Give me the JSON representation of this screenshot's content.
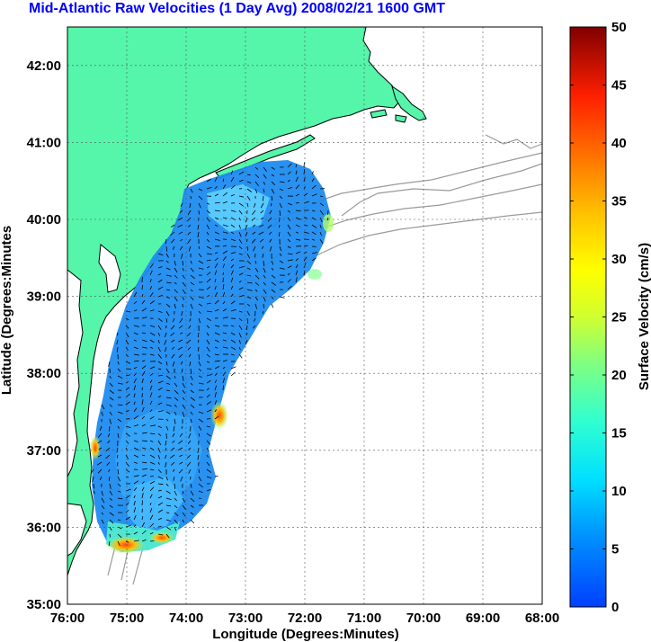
{
  "title": "Mid-Atlantic Raw Velocities (1 Day Avg) 2008/02/21 1600 GMT",
  "map": {
    "xlabel": "Longitude (Degrees:Minutes)",
    "ylabel": "Latitude (Degrees:Minutes",
    "x_ticks": [
      "76:00",
      "75:00",
      "74:00",
      "73:00",
      "72:00",
      "71:00",
      "70:00",
      "69:00",
      "68:00"
    ],
    "y_ticks": [
      "35:00",
      "36:00",
      "37:00",
      "38:00",
      "39:00",
      "40:00",
      "41:00",
      "42:00"
    ],
    "lon_range": [
      -76,
      -68
    ],
    "lat_range": [
      35,
      42.5
    ],
    "grid": true,
    "land_color": "#55f5aa",
    "coast_color": "#000000",
    "bathymetry_color": "#9a9a9a"
  },
  "colorbar": {
    "label": "Surface Velocity (cm/s)",
    "ticks": [
      "0",
      "5",
      "10",
      "15",
      "20",
      "25",
      "30",
      "35",
      "40",
      "45",
      "50"
    ],
    "range": [
      0,
      50
    ]
  }
}
